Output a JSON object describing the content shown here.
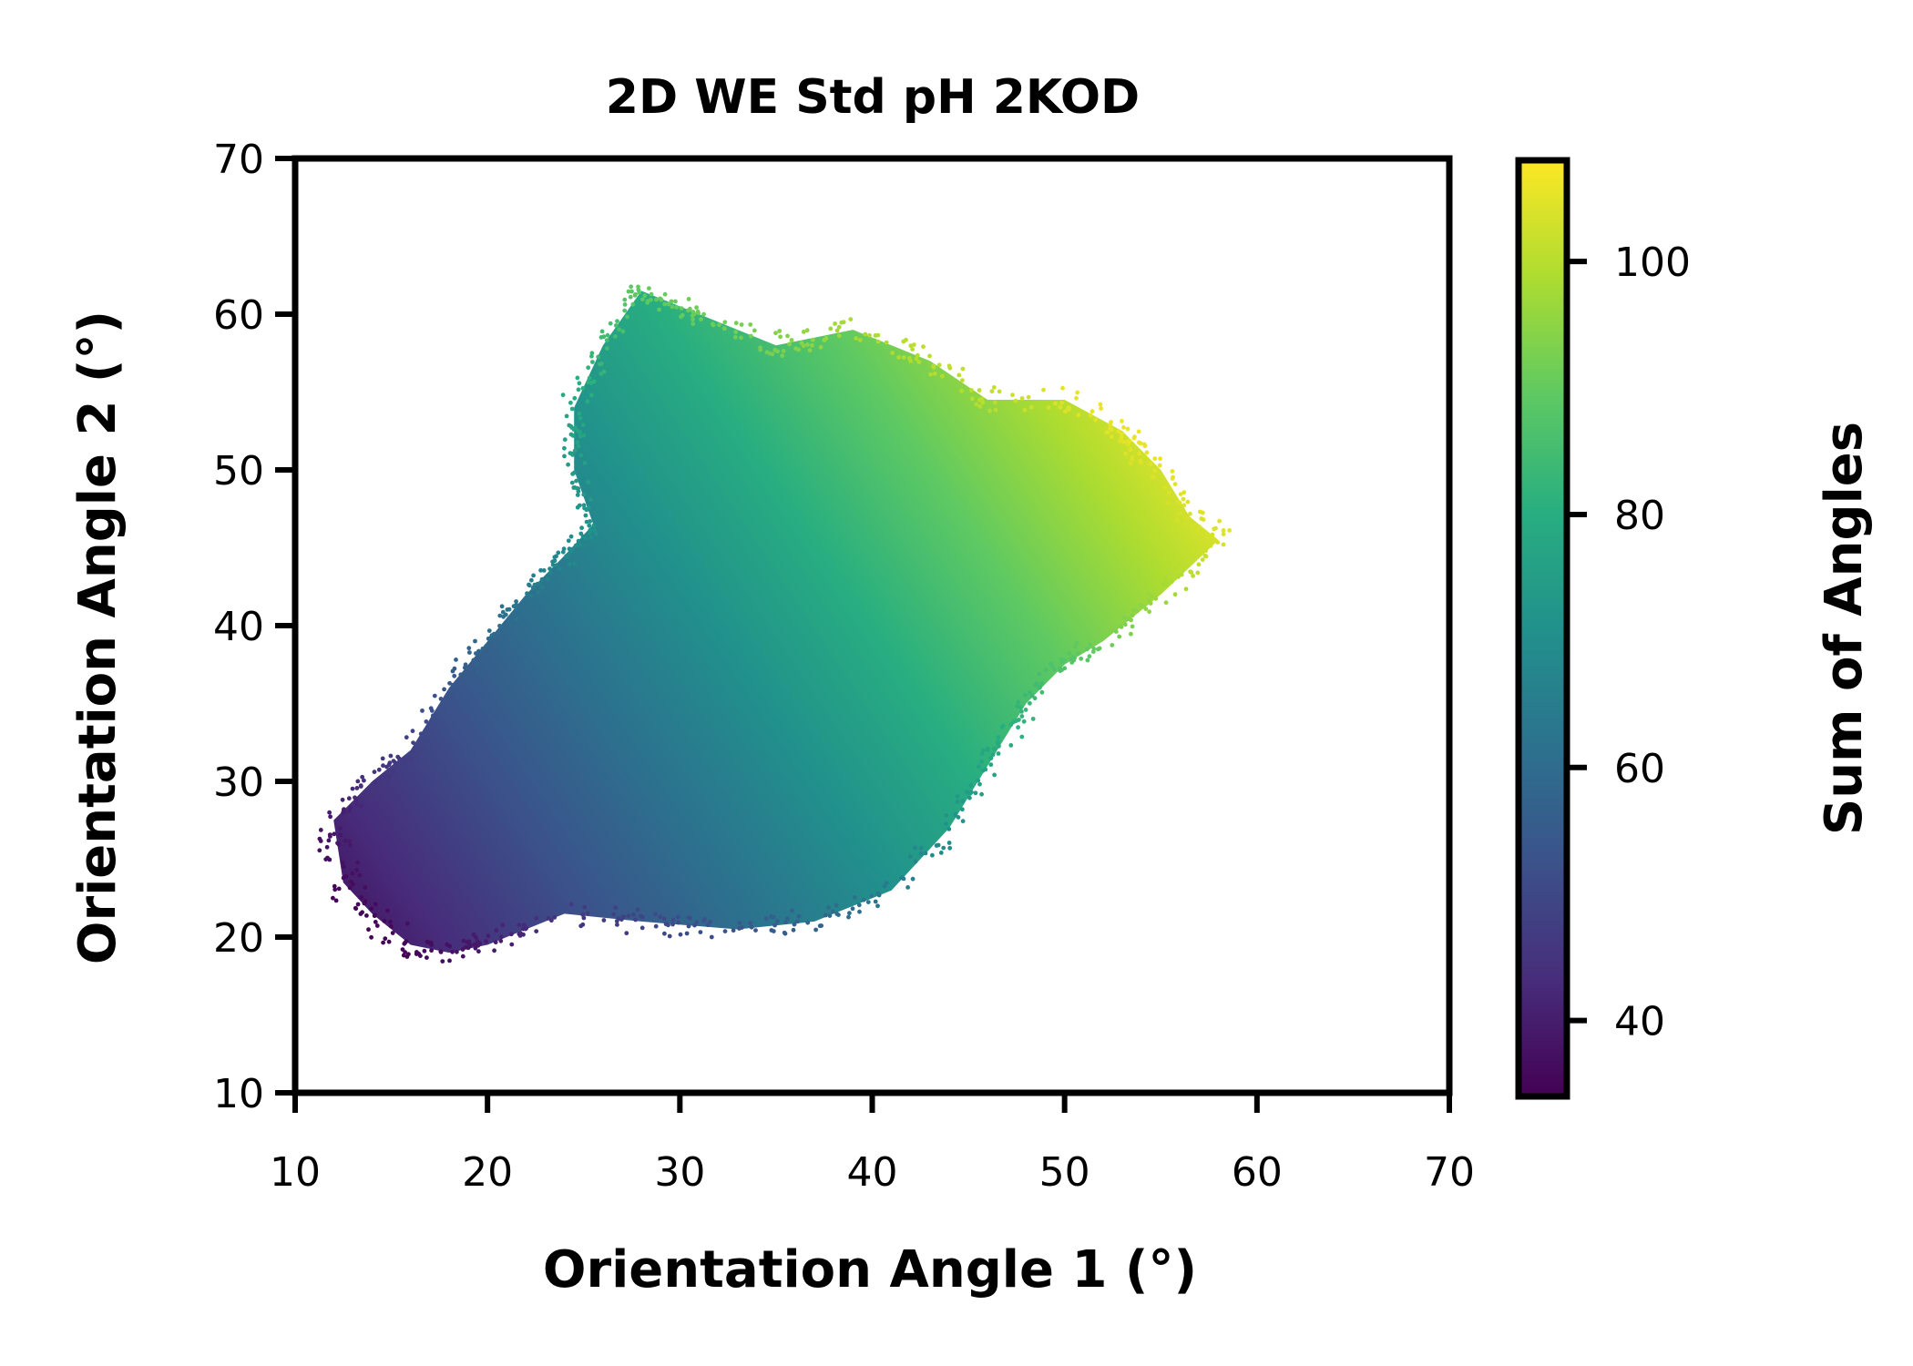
{
  "chart_data": {
    "type": "scatter",
    "title": "2D WE Std pH 2KOD",
    "xlabel": "Orientation Angle 1 (°)",
    "ylabel": "Orientation Angle 2 (°)",
    "xlim": [
      10,
      70
    ],
    "ylim": [
      10,
      70
    ],
    "xticks": [
      10,
      20,
      30,
      40,
      50,
      60,
      70
    ],
    "yticks": [
      10,
      20,
      30,
      40,
      50,
      60,
      70
    ],
    "grid": false,
    "color_by": "x + y",
    "colorbar": {
      "label": "Sum of Angles",
      "colormap": "viridis",
      "range": [
        34,
        108
      ],
      "ticks": [
        40,
        60,
        80,
        100
      ]
    },
    "point_density": {
      "description": "dense point cloud; approximate outline of populated region",
      "outline": [
        [
          12,
          27.5
        ],
        [
          14,
          30
        ],
        [
          16,
          32
        ],
        [
          18,
          36
        ],
        [
          20,
          39
        ],
        [
          22,
          42
        ],
        [
          24,
          44.5
        ],
        [
          25.5,
          46.5
        ],
        [
          24.5,
          50
        ],
        [
          24.5,
          54
        ],
        [
          26,
          58
        ],
        [
          28,
          61.5
        ],
        [
          31,
          60
        ],
        [
          35,
          58
        ],
        [
          39,
          59
        ],
        [
          43,
          57
        ],
        [
          46,
          54.5
        ],
        [
          50,
          54.5
        ],
        [
          53,
          52.5
        ],
        [
          55,
          50
        ],
        [
          56.5,
          47
        ],
        [
          58,
          45.5
        ],
        [
          55,
          42
        ],
        [
          52,
          39
        ],
        [
          50,
          37.5
        ],
        [
          48,
          35
        ],
        [
          46,
          31
        ],
        [
          44,
          27
        ],
        [
          41,
          23
        ],
        [
          37,
          21
        ],
        [
          33,
          20.5
        ],
        [
          28,
          21
        ],
        [
          24,
          21.5
        ],
        [
          20,
          19.5
        ],
        [
          18,
          19
        ],
        [
          16,
          19.5
        ],
        [
          14,
          21.5
        ],
        [
          12.5,
          23.5
        ],
        [
          12,
          27.5
        ]
      ]
    }
  }
}
